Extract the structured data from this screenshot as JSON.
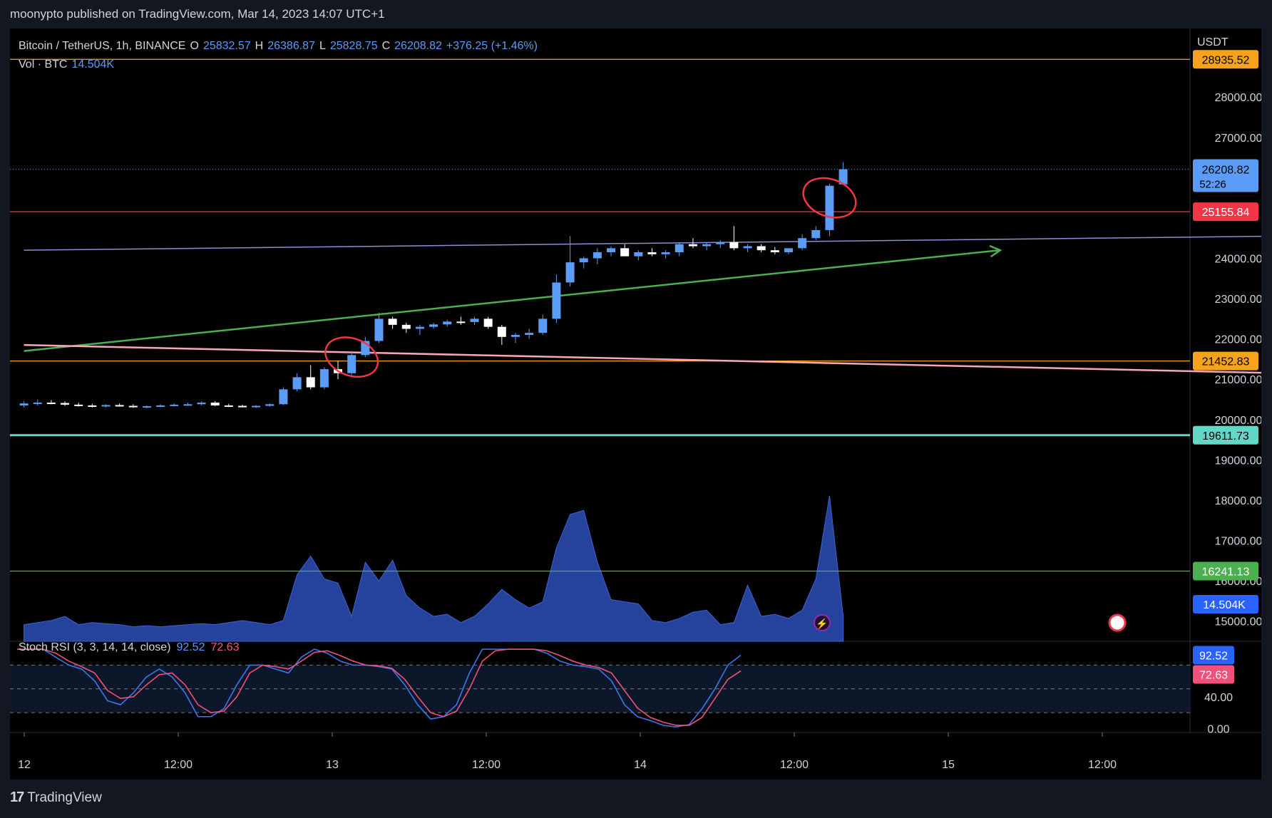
{
  "header": {
    "text": "moonypto published on TradingView.com, Mar 14, 2023 14:07 UTC+1"
  },
  "legend": {
    "symbol": "Bitcoin / TetherUS, 1h, BINANCE",
    "o_label": "O",
    "o": "25832.57",
    "h_label": "H",
    "h": "26386.87",
    "l_label": "L",
    "l": "25828.75",
    "c_label": "C",
    "c": "26208.82",
    "change": "+376.25 (+1.46%)",
    "vol_label": "Vol · BTC",
    "vol": "14.504K"
  },
  "stoch": {
    "label": "Stoch RSI (3, 3, 14, 14, close)",
    "k": "92.52",
    "d": "72.63"
  },
  "footer": {
    "brand": "TradingView",
    "logo": "17"
  },
  "colors": {
    "up": "#5b9cf6",
    "down": "#ffffff",
    "background": "#000000",
    "level_orange": "#f7a21b",
    "level_red": "#f23645",
    "level_teal": "#62d7c5",
    "level_green": "#4caf50",
    "trend_green": "#4caf50",
    "trend_pink": "#f7a8b8",
    "trend_purple": "#8c8fd8",
    "volume": "#2b4fb8",
    "k_line": "#3a78f0",
    "d_line": "#f0507a"
  },
  "chart_data": [
    {
      "type": "candlestick",
      "title": "Bitcoin / TetherUS, 1h, BINANCE",
      "y_axis_unit": "USDT",
      "ylim": [
        14500,
        29700
      ],
      "y_ticks": [
        15000,
        16000,
        17000,
        18000,
        19000,
        20000,
        21000,
        22000,
        23000,
        24000,
        27000,
        28000
      ],
      "y_tick_labels_override": {
        "16000": "16000.00"
      },
      "x_ticks": [
        "12",
        "12:00",
        "13",
        "12:00",
        "14",
        "12:00",
        "15",
        "12:00"
      ],
      "candles": [
        [
          20350,
          20450,
          20300,
          20400
        ],
        [
          20400,
          20500,
          20350,
          20420
        ],
        [
          20420,
          20480,
          20380,
          20410
        ],
        [
          20410,
          20450,
          20340,
          20370
        ],
        [
          20370,
          20420,
          20320,
          20350
        ],
        [
          20350,
          20390,
          20300,
          20330
        ],
        [
          20330,
          20380,
          20300,
          20360
        ],
        [
          20360,
          20400,
          20320,
          20340
        ],
        [
          20340,
          20380,
          20290,
          20310
        ],
        [
          20310,
          20350,
          20280,
          20330
        ],
        [
          20330,
          20380,
          20310,
          20350
        ],
        [
          20350,
          20400,
          20320,
          20370
        ],
        [
          20370,
          20420,
          20340,
          20380
        ],
        [
          20380,
          20450,
          20350,
          20420
        ],
        [
          20420,
          20460,
          20330,
          20350
        ],
        [
          20350,
          20390,
          20310,
          20340
        ],
        [
          20340,
          20370,
          20300,
          20320
        ],
        [
          20320,
          20360,
          20290,
          20340
        ],
        [
          20340,
          20400,
          20320,
          20380
        ],
        [
          20380,
          20800,
          20360,
          20750
        ],
        [
          20750,
          21150,
          20700,
          21050
        ],
        [
          21050,
          21350,
          20750,
          20800
        ],
        [
          20800,
          21300,
          20750,
          21250
        ],
        [
          21250,
          21450,
          21000,
          21150
        ],
        [
          21150,
          21700,
          21100,
          21600
        ],
        [
          21600,
          22050,
          21550,
          21950
        ],
        [
          21950,
          22650,
          21900,
          22500
        ],
        [
          22500,
          22550,
          22250,
          22350
        ],
        [
          22350,
          22400,
          22150,
          22250
        ],
        [
          22250,
          22350,
          22100,
          22300
        ],
        [
          22300,
          22400,
          22250,
          22360
        ],
        [
          22360,
          22480,
          22300,
          22430
        ],
        [
          22430,
          22550,
          22350,
          22420
        ],
        [
          22420,
          22550,
          22350,
          22500
        ],
        [
          22500,
          22550,
          22250,
          22300
        ],
        [
          22300,
          22350,
          21850,
          22050
        ],
        [
          22050,
          22150,
          21900,
          22100
        ],
        [
          22100,
          22250,
          22000,
          22150
        ],
        [
          22150,
          22600,
          22100,
          22500
        ],
        [
          22500,
          23600,
          22400,
          23400
        ],
        [
          23400,
          24550,
          23300,
          23900
        ],
        [
          23900,
          24050,
          23750,
          24000
        ],
        [
          24000,
          24250,
          23850,
          24150
        ],
        [
          24150,
          24300,
          24050,
          24250
        ],
        [
          24250,
          24350,
          24050,
          24050
        ],
        [
          24050,
          24200,
          23950,
          24150
        ],
        [
          24150,
          24250,
          24050,
          24100
        ],
        [
          24100,
          24200,
          24000,
          24150
        ],
        [
          24150,
          24400,
          24050,
          24350
        ],
        [
          24350,
          24500,
          24250,
          24300
        ],
        [
          24300,
          24400,
          24200,
          24350
        ],
        [
          24350,
          24450,
          24250,
          24400
        ],
        [
          24400,
          24800,
          24200,
          24250
        ],
        [
          24250,
          24350,
          24150,
          24300
        ],
        [
          24300,
          24350,
          24150,
          24200
        ],
        [
          24200,
          24280,
          24100,
          24150
        ],
        [
          24150,
          24250,
          24100,
          24250
        ],
        [
          24250,
          24600,
          24200,
          24500
        ],
        [
          24500,
          24800,
          24450,
          24700
        ],
        [
          24700,
          25850,
          24550,
          25800
        ],
        [
          25832.57,
          26386.87,
          25828.75,
          26208.82
        ]
      ],
      "levels": [
        {
          "value": 28935.52,
          "label": "28935.52",
          "color": "#f7a21b"
        },
        {
          "value": 25155.84,
          "label": "25155.84",
          "color": "#f23645"
        },
        {
          "value": 21452.83,
          "label": "21452.83",
          "color": "#f7a21b"
        },
        {
          "value": 19611.73,
          "label": "19611.73",
          "color": "#62d7c5"
        },
        {
          "value": 16241.13,
          "label": "16241.13",
          "color": "#4caf50"
        }
      ],
      "last_price": {
        "value": 26208.82,
        "label": "26208.82",
        "countdown": "52:26"
      },
      "trendlines": [
        {
          "from": [
            0,
            21700
          ],
          "to": [
            71.5,
            24200
          ],
          "color": "#4caf50",
          "arrow": true
        },
        {
          "from": [
            0,
            21850
          ],
          "to": [
            92,
            21150
          ],
          "color": "#f7a8b8"
        },
        {
          "from": [
            0,
            24200
          ],
          "to": [
            92,
            24550
          ],
          "color": "#8c8fd8"
        }
      ],
      "circles": [
        {
          "index": 24,
          "value": 21550
        },
        {
          "index": 59,
          "value": 25500
        }
      ]
    },
    {
      "type": "area",
      "title": "Vol · BTC",
      "last_label": "14.504K",
      "values": [
        0.8,
        0.9,
        1.0,
        1.2,
        0.8,
        0.9,
        0.85,
        0.8,
        0.7,
        0.75,
        0.7,
        0.75,
        0.8,
        0.85,
        0.8,
        0.9,
        1.0,
        0.9,
        0.8,
        1.0,
        3.2,
        4.1,
        3.0,
        2.8,
        1.2,
        3.8,
        2.9,
        3.9,
        2.2,
        1.6,
        1.2,
        1.3,
        0.9,
        1.2,
        1.8,
        2.5,
        2.0,
        1.6,
        1.9,
        4.5,
        6.1,
        6.3,
        3.8,
        2.0,
        1.9,
        1.8,
        1.0,
        0.9,
        1.1,
        1.4,
        1.5,
        0.8,
        0.9,
        2.7,
        1.2,
        1.3,
        1.1,
        1.5,
        3.0,
        7.0,
        1.2
      ]
    },
    {
      "type": "line",
      "title": "Stoch RSI (3, 3, 14, 14, close)",
      "ylim": [
        -5,
        110
      ],
      "y_ticks": [
        0,
        40
      ],
      "bands": [
        20,
        50,
        80
      ],
      "series": [
        {
          "name": "K",
          "values": [
            100,
            100,
            100,
            90,
            80,
            75,
            60,
            35,
            30,
            45,
            65,
            75,
            65,
            45,
            15,
            15,
            25,
            55,
            80,
            80,
            75,
            70,
            90,
            100,
            95,
            85,
            80,
            80,
            78,
            75,
            55,
            30,
            12,
            15,
            30,
            70,
            100,
            100,
            100,
            100,
            100,
            95,
            85,
            80,
            78,
            75,
            60,
            30,
            15,
            10,
            4,
            2,
            5,
            25,
            50,
            80,
            92.52
          ]
        },
        {
          "name": "D",
          "values": [
            100,
            100,
            100,
            95,
            85,
            78,
            70,
            48,
            38,
            40,
            55,
            68,
            70,
            55,
            30,
            20,
            22,
            40,
            70,
            80,
            78,
            75,
            85,
            96,
            98,
            92,
            85,
            80,
            79,
            76,
            62,
            40,
            20,
            15,
            22,
            50,
            85,
            98,
            100,
            100,
            100,
            98,
            92,
            85,
            80,
            77,
            70,
            48,
            26,
            14,
            8,
            4,
            4,
            14,
            38,
            62,
            72.63
          ]
        }
      ],
      "k_label": "92.52",
      "d_label": "72.63"
    }
  ]
}
